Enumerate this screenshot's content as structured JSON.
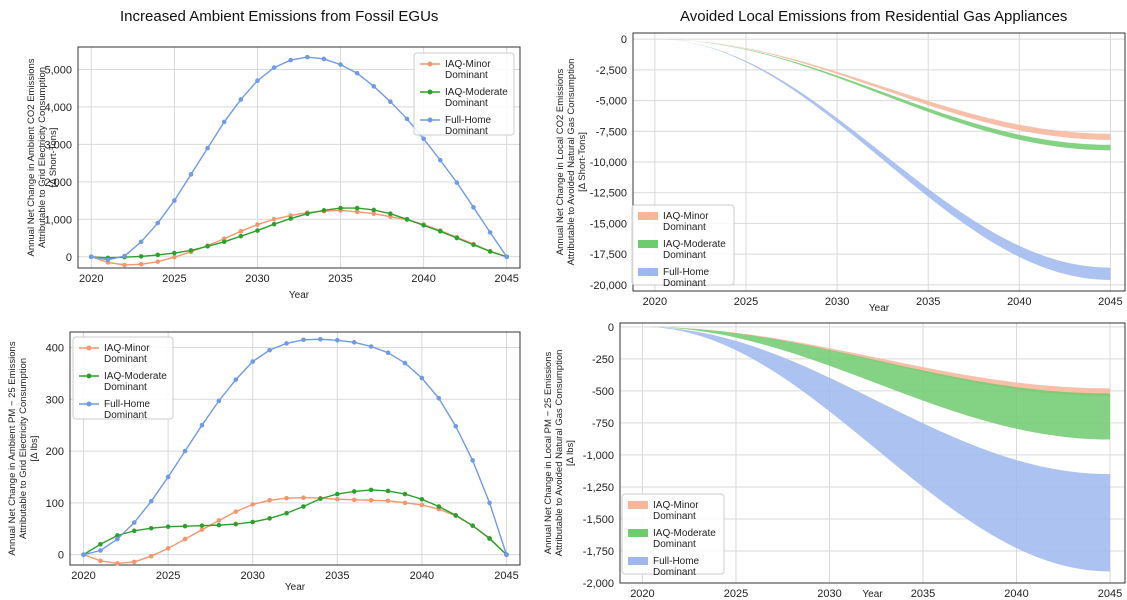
{
  "titles": {
    "left": "Increased Ambient Emissions from Fossil EGUs",
    "right": "Avoided Local Emissions from Residential Gas Appliances"
  },
  "chart_data": [
    {
      "id": "p1",
      "type": "line",
      "xlabel": "Year",
      "ylabel": [
        "Annual Net Change in Ambient CO2 Emissions",
        "Attributable to Grid Electricity Consumption",
        "[Δ Short-Tons]"
      ],
      "xlim": [
        2019.2,
        2045.8
      ],
      "ylim": [
        -300,
        5600
      ],
      "xticks": [
        2020,
        2025,
        2030,
        2035,
        2040,
        2045
      ],
      "yticks": [
        0,
        1000,
        2000,
        3000,
        4000,
        5000
      ],
      "ytick_labels": [
        "0",
        "1,000",
        "2,000",
        "3,000",
        "4,000",
        "5,000"
      ],
      "grid": true,
      "legend": "top-right",
      "x": [
        2020,
        2021,
        2022,
        2023,
        2024,
        2025,
        2026,
        2027,
        2028,
        2029,
        2030,
        2031,
        2032,
        2033,
        2034,
        2035,
        2036,
        2037,
        2038,
        2039,
        2040,
        2041,
        2042,
        2043,
        2044,
        2045
      ],
      "series": [
        {
          "name": [
            "IAQ-Minor",
            "Dominant"
          ],
          "color": "#f4976c",
          "values": [
            0,
            -150,
            -220,
            -200,
            -130,
            -10,
            130,
            300,
            480,
            680,
            860,
            1000,
            1100,
            1180,
            1220,
            1240,
            1200,
            1150,
            1070,
            990,
            860,
            700,
            520,
            340,
            150,
            0
          ]
        },
        {
          "name": [
            "IAQ-Moderate",
            "Dominant"
          ],
          "color": "#2ca02c",
          "values": [
            0,
            -30,
            -10,
            10,
            50,
            100,
            170,
            280,
            400,
            550,
            700,
            870,
            1020,
            1150,
            1240,
            1300,
            1300,
            1250,
            1150,
            1000,
            840,
            680,
            500,
            320,
            140,
            0
          ]
        },
        {
          "name": [
            "Full-Home",
            "Dominant"
          ],
          "color": "#6f9ae8",
          "values": [
            0,
            -80,
            20,
            400,
            900,
            1500,
            2200,
            2900,
            3600,
            4200,
            4700,
            5050,
            5250,
            5330,
            5280,
            5130,
            4900,
            4550,
            4140,
            3680,
            3150,
            2580,
            1980,
            1320,
            650,
            0
          ]
        }
      ]
    },
    {
      "id": "p2",
      "type": "area",
      "xlabel": "Year",
      "ylabel": [
        "Annual Net Change in Local CO2 Emissions",
        "Attributable to Avoided Natural Gas Consumption",
        "[Δ Short-Tons]"
      ],
      "xlim": [
        2018.8,
        2045.8
      ],
      "ylim": [
        -20500,
        500
      ],
      "xticks": [
        2020,
        2025,
        2030,
        2035,
        2040,
        2045
      ],
      "yticks": [
        0,
        -2500,
        -5000,
        -7500,
        -10000,
        -12500,
        -15000,
        -17500,
        -20000
      ],
      "ytick_labels": [
        "0",
        "-2,500",
        "-5,000",
        "-7,500",
        "-10,000",
        "-12,500",
        "-15,000",
        "-17,500",
        "-20,000"
      ],
      "grid": true,
      "legend": "bottom-left",
      "series": [
        {
          "name": [
            "IAQ-Minor",
            "Dominant"
          ],
          "color": "#f7b59a",
          "upper_end": -7700,
          "lower_end": -8200
        },
        {
          "name": [
            "IAQ-Moderate",
            "Dominant"
          ],
          "color": "#6fcb6f",
          "upper_end": -8600,
          "lower_end": -9050
        },
        {
          "name": [
            "Full-Home",
            "Dominant"
          ],
          "color": "#9db7ef",
          "upper_end": -18600,
          "lower_end": -19600
        }
      ]
    },
    {
      "id": "p3",
      "type": "line",
      "xlabel": "Year",
      "ylabel": [
        "Annual Net Change in Ambient PM − 25 Emissions",
        "Attributable to Grid Electricity Consumption",
        "[Δ lbs]"
      ],
      "xlim": [
        2019.2,
        2045.8
      ],
      "ylim": [
        -20,
        430
      ],
      "xticks": [
        2020,
        2025,
        2030,
        2035,
        2040,
        2045
      ],
      "yticks": [
        0,
        100,
        200,
        300,
        400
      ],
      "ytick_labels": [
        "0",
        "100",
        "200",
        "300",
        "400"
      ],
      "grid": true,
      "legend": "top-left",
      "x": [
        2020,
        2021,
        2022,
        2023,
        2024,
        2025,
        2026,
        2027,
        2028,
        2029,
        2030,
        2031,
        2032,
        2033,
        2034,
        2035,
        2036,
        2037,
        2038,
        2039,
        2040,
        2041,
        2042,
        2043,
        2044,
        2045
      ],
      "series": [
        {
          "name": [
            "IAQ-Minor",
            "Dominant"
          ],
          "color": "#f4976c",
          "values": [
            0,
            -12,
            -17,
            -14,
            -3,
            12,
            30,
            48,
            66,
            83,
            97,
            105,
            109,
            110,
            109,
            107,
            106,
            105,
            104,
            100,
            96,
            88,
            75,
            56,
            32,
            0
          ]
        },
        {
          "name": [
            "IAQ-Moderate",
            "Dominant"
          ],
          "color": "#2ca02c",
          "values": [
            0,
            20,
            37,
            46,
            51,
            54,
            55,
            56,
            57,
            59,
            63,
            70,
            80,
            93,
            108,
            117,
            122,
            125,
            123,
            117,
            107,
            93,
            76,
            56,
            31,
            0
          ]
        },
        {
          "name": [
            "Full-Home",
            "Dominant"
          ],
          "color": "#6f9ae8",
          "values": [
            0,
            8,
            30,
            62,
            103,
            150,
            200,
            250,
            297,
            338,
            373,
            395,
            408,
            415,
            416,
            414,
            410,
            402,
            390,
            370,
            341,
            302,
            248,
            182,
            100,
            0
          ]
        }
      ]
    },
    {
      "id": "p4",
      "type": "area",
      "xlabel": "Year",
      "ylabel": [
        "Annual Net Change in Local PM − 25 Emissions",
        "Attributable to Avoided Natural Gas Consumption",
        "[Δ lbs]"
      ],
      "xlim": [
        2018.8,
        2045.8
      ],
      "ylim": [
        -2000,
        30
      ],
      "xticks": [
        2020,
        2025,
        2030,
        2035,
        2040,
        2045
      ],
      "yticks": [
        0,
        -250,
        -500,
        -750,
        -1000,
        -1250,
        -1500,
        -1750,
        -2000
      ],
      "ytick_labels": [
        "0",
        "-250",
        "-500",
        "-750",
        "-1,000",
        "-1,250",
        "-1,500",
        "-1,750",
        "-2,000"
      ],
      "grid": true,
      "legend": "bottom-left",
      "series": [
        {
          "name": [
            "IAQ-Minor",
            "Dominant"
          ],
          "color": "#f7b59a",
          "upper_end": -480,
          "lower_end": -540
        },
        {
          "name": [
            "IAQ-Moderate",
            "Dominant"
          ],
          "color": "#6fcb6f",
          "upper_end": -520,
          "lower_end": -880
        },
        {
          "name": [
            "Full-Home",
            "Dominant"
          ],
          "color": "#9db7ef",
          "upper_end": -1150,
          "lower_end": -1910
        }
      ]
    }
  ]
}
